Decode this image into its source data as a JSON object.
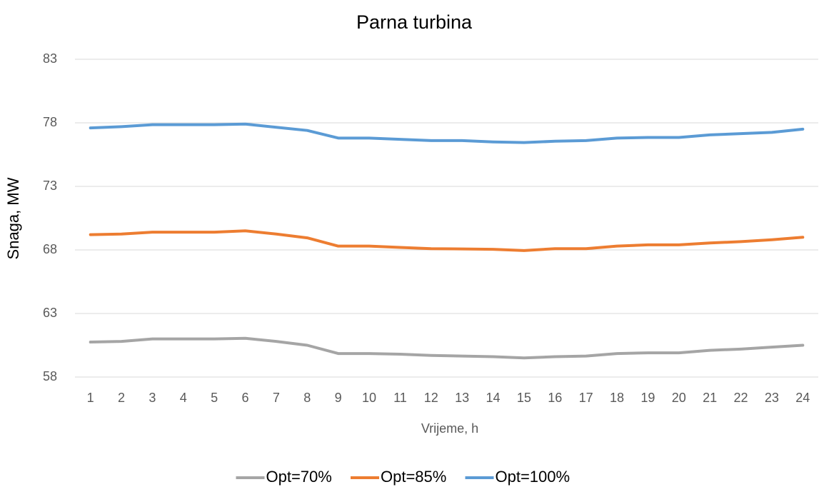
{
  "chart_data": {
    "type": "line",
    "title": "Parna turbina",
    "xlabel": "Vrijeme, h",
    "ylabel": "Snaga, MW",
    "categories": [
      "1",
      "2",
      "3",
      "4",
      "5",
      "6",
      "7",
      "8",
      "9",
      "10",
      "11",
      "12",
      "13",
      "14",
      "15",
      "16",
      "17",
      "18",
      "19",
      "20",
      "21",
      "22",
      "23",
      "24"
    ],
    "series": [
      {
        "name": "Opt=70%",
        "color": "#a5a5a5",
        "values": [
          60.75,
          60.8,
          61.0,
          61.0,
          61.0,
          61.05,
          60.8,
          60.5,
          59.85,
          59.85,
          59.8,
          59.7,
          59.65,
          59.6,
          59.5,
          59.6,
          59.65,
          59.85,
          59.9,
          59.9,
          60.1,
          60.2,
          60.35,
          60.5
        ]
      },
      {
        "name": "Opt=85%",
        "color": "#ed7d31",
        "values": [
          69.2,
          69.25,
          69.4,
          69.4,
          69.4,
          69.5,
          69.25,
          68.95,
          68.3,
          68.3,
          68.2,
          68.1,
          68.08,
          68.05,
          67.95,
          68.1,
          68.1,
          68.3,
          68.4,
          68.4,
          68.55,
          68.65,
          68.8,
          69.0
        ]
      },
      {
        "name": "Opt=100%",
        "color": "#5b9bd5",
        "values": [
          77.6,
          77.7,
          77.85,
          77.85,
          77.85,
          77.9,
          77.65,
          77.4,
          76.8,
          76.8,
          76.7,
          76.6,
          76.6,
          76.5,
          76.45,
          76.55,
          76.6,
          76.8,
          76.85,
          76.85,
          77.05,
          77.15,
          77.25,
          77.5
        ]
      }
    ],
    "ylim": [
      58,
      83
    ],
    "yticks": [
      58,
      63,
      68,
      73,
      78,
      83
    ],
    "grid": true,
    "legend": "bottom"
  }
}
